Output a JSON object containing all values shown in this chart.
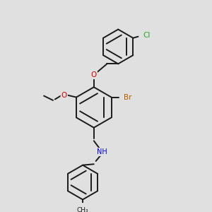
{
  "bg_color": "#e0e0e0",
  "bond_color": "#1a1a1a",
  "colors": {
    "Br": "#b85c00",
    "Cl": "#22aa22",
    "O": "#dd0000",
    "N": "#0000ee",
    "C": "#1a1a1a"
  },
  "lw": 1.4,
  "fs": 7.5,
  "dbo": 0.018
}
